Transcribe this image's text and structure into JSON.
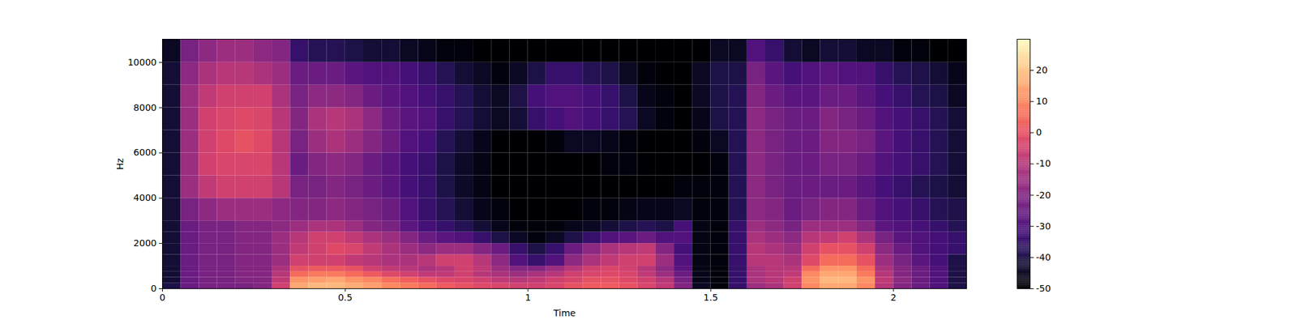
{
  "chart_data": {
    "type": "heatmap",
    "x_label": "Time",
    "y_label": "Hz",
    "color": "magma",
    "xlim": [
      0,
      2.2
    ],
    "ylim": [
      0,
      11025
    ],
    "xticks": [
      0,
      0.5,
      1,
      1.5,
      2
    ],
    "yticks": [
      0,
      2000,
      4000,
      6000,
      8000,
      10000
    ],
    "time_edges": [
      0,
      0.05,
      0.1,
      0.15,
      0.2,
      0.25,
      0.3,
      0.35,
      0.4,
      0.45,
      0.5,
      0.55,
      0.6,
      0.65,
      0.7,
      0.75,
      0.8,
      0.85,
      0.9,
      0.95,
      1.0,
      1.05,
      1.1,
      1.15,
      1.2,
      1.25,
      1.3,
      1.35,
      1.4,
      1.45,
      1.5,
      1.55,
      1.6,
      1.65,
      1.7,
      1.75,
      1.8,
      1.85,
      1.9,
      1.95,
      2.0,
      2.05,
      2.1,
      2.15,
      2.2
    ],
    "freq_edges": [
      0,
      250,
      500,
      750,
      1000,
      1500,
      2000,
      2500,
      3000,
      4000,
      5000,
      6000,
      7000,
      8000,
      9000,
      10000,
      11025
    ],
    "cells": [
      [
        -40,
        -25,
        -22,
        -22,
        -22,
        -20,
        -5,
        15,
        18,
        18,
        16,
        14,
        10,
        8,
        5,
        2,
        0,
        -2,
        -3,
        -5,
        -5,
        -3,
        0,
        2,
        2,
        0,
        -3,
        -8,
        -20,
        -45,
        -48,
        -35,
        -15,
        -12,
        -5,
        10,
        15,
        15,
        10,
        -10,
        -20,
        -25,
        -30,
        -40
      ],
      [
        -42,
        -25,
        -22,
        -22,
        -20,
        -20,
        -8,
        12,
        14,
        15,
        12,
        10,
        6,
        3,
        0,
        -2,
        -3,
        -5,
        -8,
        -10,
        -8,
        -5,
        -3,
        0,
        0,
        -2,
        -5,
        -10,
        -22,
        -46,
        -48,
        -35,
        -12,
        -10,
        -5,
        12,
        18,
        18,
        12,
        -8,
        -18,
        -25,
        -30,
        -40
      ],
      [
        -42,
        -25,
        -22,
        -22,
        -20,
        -20,
        -10,
        5,
        8,
        8,
        5,
        2,
        -2,
        -5,
        -8,
        -8,
        -5,
        -10,
        -12,
        -15,
        -12,
        -10,
        -5,
        -3,
        -2,
        -3,
        -8,
        -15,
        -25,
        -46,
        -48,
        -35,
        -12,
        -10,
        -8,
        10,
        15,
        15,
        8,
        -10,
        -20,
        -25,
        -30,
        -40
      ],
      [
        -42,
        -25,
        -22,
        -22,
        -20,
        -20,
        -12,
        0,
        2,
        2,
        0,
        -5,
        -8,
        -10,
        -12,
        -10,
        -5,
        -8,
        -15,
        -20,
        -20,
        -15,
        -10,
        -5,
        -3,
        -5,
        -10,
        -18,
        -28,
        -47,
        -48,
        -35,
        -12,
        -10,
        -10,
        5,
        12,
        12,
        5,
        -12,
        -20,
        -25,
        -30,
        -40
      ],
      [
        -42,
        -25,
        -22,
        -22,
        -20,
        -20,
        -15,
        -5,
        -5,
        -5,
        -8,
        -10,
        -12,
        -12,
        -10,
        -5,
        -5,
        -10,
        -18,
        -30,
        -35,
        -30,
        -18,
        -12,
        -8,
        -5,
        -5,
        -15,
        -30,
        -47,
        -48,
        -35,
        -10,
        -10,
        -12,
        -2,
        5,
        5,
        0,
        -15,
        -22,
        -28,
        -32,
        -40
      ],
      [
        -42,
        -25,
        -22,
        -22,
        -20,
        -20,
        -15,
        -8,
        -5,
        -2,
        -3,
        -8,
        -12,
        -15,
        -18,
        -15,
        -15,
        -20,
        -25,
        -35,
        -40,
        -35,
        -25,
        -18,
        -12,
        -10,
        -8,
        -20,
        -32,
        -47,
        -48,
        -35,
        -10,
        -12,
        -15,
        -5,
        0,
        0,
        -5,
        -18,
        -25,
        -30,
        -32,
        -35
      ],
      [
        -42,
        -25,
        -22,
        -22,
        -20,
        -20,
        -15,
        -10,
        -5,
        -5,
        -8,
        -12,
        -15,
        -20,
        -25,
        -28,
        -30,
        -35,
        -40,
        -45,
        -48,
        -45,
        -40,
        -35,
        -30,
        -28,
        -25,
        -30,
        -30,
        -47,
        -48,
        -35,
        -12,
        -15,
        -18,
        -10,
        -8,
        -5,
        -12,
        -22,
        -28,
        -30,
        -32,
        -35
      ],
      [
        -42,
        -25,
        -22,
        -22,
        -20,
        -20,
        -18,
        -15,
        -12,
        -12,
        -15,
        -20,
        -22,
        -28,
        -32,
        -35,
        -38,
        -42,
        -46,
        -48,
        -48,
        -48,
        -46,
        -45,
        -42,
        -40,
        -38,
        -40,
        -32,
        -47,
        -48,
        -35,
        -15,
        -18,
        -22,
        -15,
        -15,
        -15,
        -20,
        -28,
        -30,
        -32,
        -35,
        -38
      ],
      [
        -42,
        -22,
        -18,
        -15,
        -15,
        -15,
        -18,
        -20,
        -20,
        -18,
        -20,
        -22,
        -25,
        -30,
        -35,
        -38,
        -42,
        -46,
        -48,
        -50,
        -50,
        -50,
        -50,
        -48,
        -48,
        -47,
        -46,
        -46,
        -45,
        -48,
        -48,
        -38,
        -18,
        -20,
        -25,
        -22,
        -20,
        -20,
        -25,
        -30,
        -32,
        -35,
        -38,
        -40
      ],
      [
        -42,
        -15,
        -8,
        -5,
        -5,
        -5,
        -10,
        -22,
        -22,
        -20,
        -22,
        -25,
        -28,
        -32,
        -35,
        -40,
        -44,
        -47,
        -50,
        -50,
        -50,
        -50,
        -50,
        -50,
        -50,
        -50,
        -50,
        -50,
        -48,
        -48,
        -48,
        -38,
        -18,
        -22,
        -25,
        -25,
        -25,
        -25,
        -28,
        -32,
        -35,
        -38,
        -40,
        -42
      ],
      [
        -42,
        -15,
        -5,
        -3,
        -3,
        -3,
        -10,
        -25,
        -20,
        -18,
        -20,
        -25,
        -28,
        -32,
        -35,
        -40,
        -44,
        -47,
        -50,
        -50,
        -50,
        -50,
        -50,
        -50,
        -48,
        -48,
        -50,
        -50,
        -50,
        -50,
        -48,
        -38,
        -18,
        -22,
        -25,
        -25,
        -22,
        -22,
        -25,
        -30,
        -32,
        -35,
        -38,
        -42
      ],
      [
        -42,
        -15,
        -5,
        -2,
        0,
        -2,
        -10,
        -22,
        -15,
        -12,
        -15,
        -20,
        -25,
        -30,
        -32,
        -38,
        -42,
        -46,
        -50,
        -50,
        -50,
        -48,
        -45,
        -45,
        -46,
        -48,
        -50,
        -50,
        -50,
        -48,
        -45,
        -38,
        -18,
        -22,
        -25,
        -25,
        -20,
        -20,
        -22,
        -28,
        -32,
        -35,
        -38,
        -42
      ],
      [
        -42,
        -15,
        -5,
        -3,
        -2,
        -3,
        -10,
        -20,
        -12,
        -10,
        -12,
        -18,
        -25,
        -28,
        -30,
        -35,
        -38,
        -42,
        -45,
        -42,
        -35,
        -32,
        -30,
        -32,
        -35,
        -38,
        -45,
        -48,
        -50,
        -46,
        -40,
        -38,
        -18,
        -22,
        -25,
        -25,
        -20,
        -22,
        -25,
        -30,
        -32,
        -35,
        -38,
        -42
      ],
      [
        -42,
        -15,
        -8,
        -5,
        -5,
        -5,
        -12,
        -22,
        -18,
        -18,
        -20,
        -25,
        -28,
        -30,
        -32,
        -35,
        -38,
        -42,
        -45,
        -40,
        -32,
        -30,
        -30,
        -32,
        -35,
        -40,
        -46,
        -48,
        -50,
        -45,
        -40,
        -38,
        -20,
        -25,
        -28,
        -28,
        -25,
        -25,
        -28,
        -32,
        -35,
        -38,
        -40,
        -45
      ],
      [
        -42,
        -18,
        -12,
        -10,
        -10,
        -12,
        -15,
        -25,
        -25,
        -25,
        -28,
        -30,
        -30,
        -32,
        -35,
        -38,
        -42,
        -45,
        -48,
        -45,
        -40,
        -35,
        -35,
        -38,
        -40,
        -45,
        -48,
        -50,
        -50,
        -45,
        -40,
        -40,
        -22,
        -28,
        -32,
        -30,
        -28,
        -30,
        -30,
        -35,
        -38,
        -40,
        -42,
        -46
      ],
      [
        -45,
        -22,
        -18,
        -15,
        -15,
        -18,
        -20,
        -35,
        -38,
        -38,
        -40,
        -42,
        -42,
        -45,
        -46,
        -48,
        -48,
        -50,
        -50,
        -50,
        -50,
        -50,
        -50,
        -50,
        -50,
        -50,
        -50,
        -50,
        -50,
        -50,
        -45,
        -45,
        -30,
        -35,
        -42,
        -45,
        -42,
        -42,
        -45,
        -45,
        -48,
        -48,
        -50,
        -50
      ]
    ],
    "colorbar": {
      "range": [
        -50,
        30
      ],
      "ticks": [
        -50,
        -40,
        -30,
        -20,
        -10,
        0,
        10,
        20
      ]
    }
  }
}
